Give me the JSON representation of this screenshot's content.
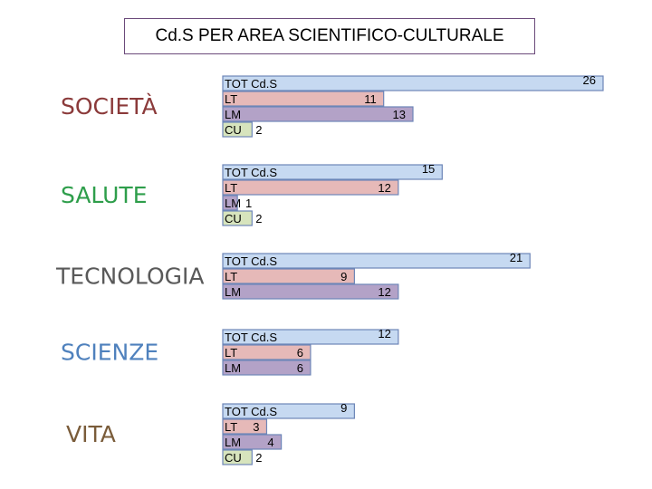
{
  "chart_data": {
    "type": "bar",
    "title": "Cd.S PER AREA SCIENTIFICO-CULTURALE",
    "groups": [
      {
        "name": "SOCIETÀ",
        "color": "#8b3a3a",
        "bars": [
          {
            "label": "TOT Cd.S",
            "value": 26
          },
          {
            "label": "LT",
            "value": 11
          },
          {
            "label": "LM",
            "value": 13
          },
          {
            "label": "CU",
            "value": 2
          }
        ]
      },
      {
        "name": "SALUTE",
        "color": "#2e9e4b",
        "bars": [
          {
            "label": "TOT Cd.S",
            "value": 15
          },
          {
            "label": "LT",
            "value": 12
          },
          {
            "label": "LM",
            "value": 1
          },
          {
            "label": "CU",
            "value": 2
          }
        ]
      },
      {
        "name": "TECNOLOGIA",
        "color": "#595959",
        "bars": [
          {
            "label": "TOT Cd.S",
            "value": 21
          },
          {
            "label": "LT",
            "value": 9
          },
          {
            "label": "LM",
            "value": 12
          }
        ]
      },
      {
        "name": "SCIENZE",
        "color": "#4f81bd",
        "bars": [
          {
            "label": "TOT Cd.S",
            "value": 12
          },
          {
            "label": "LT",
            "value": 6
          },
          {
            "label": "LM",
            "value": 6
          }
        ]
      },
      {
        "name": "VITA",
        "color": "#7a5c3a",
        "bars": [
          {
            "label": "TOT Cd.S",
            "value": 9
          },
          {
            "label": "LT",
            "value": 3
          },
          {
            "label": "LM",
            "value": 4
          },
          {
            "label": "CU",
            "value": 2
          }
        ]
      }
    ],
    "bar_colors": {
      "TOT Cd.S": "#c6d9f1",
      "LT": "#e6b9b8",
      "LM": "#b3a2c7",
      "CU": "#d7e4bd"
    },
    "xlim": [
      0,
      26
    ],
    "grid": false,
    "legend": "none"
  }
}
